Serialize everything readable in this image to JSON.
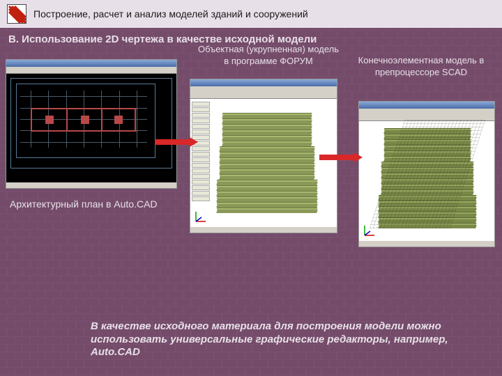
{
  "colors": {
    "slide_bg": "#7a5070",
    "brick_light": "#8a5878",
    "brick_dark": "#6a4460",
    "text_light": "#e8e0e8",
    "text_dark": "#1a1a1a",
    "cad_bg": "#000000",
    "cad_line": "#4a6a8a",
    "cad_red": "#c84444",
    "building_light": "#9cae60",
    "building_dark": "#7a8a48",
    "arrow": "#d82828"
  },
  "header": {
    "title": "Построение, расчет и анализ моделей зданий и сооружений"
  },
  "section": {
    "title": "B. Использование 2D чертежа в качестве исходной модели"
  },
  "captions": {
    "autocad": "Архитектурный план в Auto.CAD",
    "forum": "Объектная (укрупненная) модель в программе ФОРУМ",
    "scad": "Конечноэлементная модель в препроцессоре SCAD"
  },
  "bottom_text": "В качестве исходного материала для построения модели можно использовать универсальные графические редакторы, например, Auto.CAD",
  "building": {
    "floors": 18,
    "floor_height": 8
  },
  "screenshots": {
    "autocad": {
      "type": "cad-plan"
    },
    "forum": {
      "type": "building-3d"
    },
    "scad": {
      "type": "building-3d-mesh"
    }
  }
}
